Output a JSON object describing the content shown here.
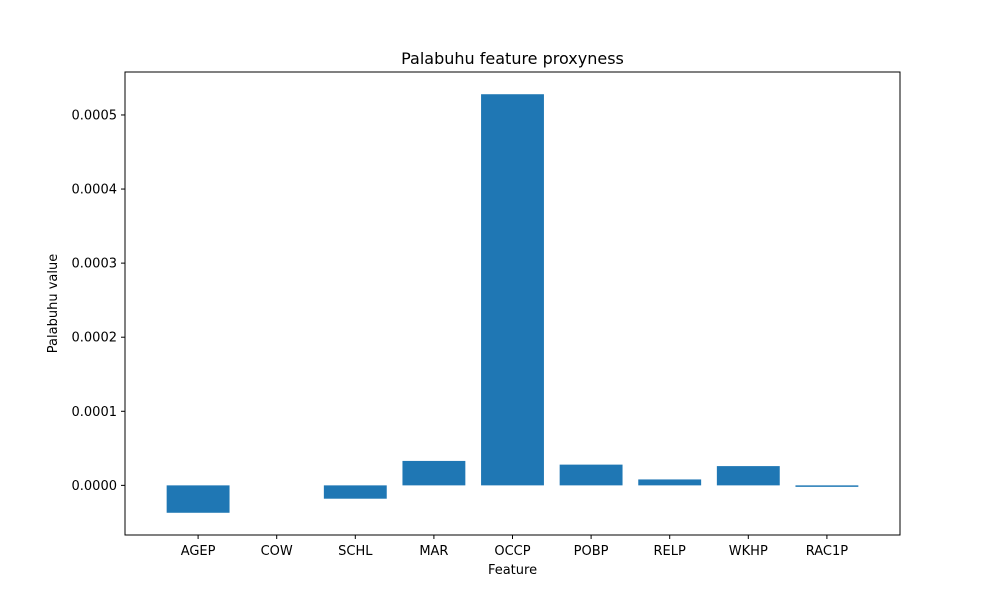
{
  "chart_data": {
    "type": "bar",
    "title": "Palabuhu feature proxyness",
    "xlabel": "Feature",
    "ylabel": "Palabuhu value",
    "categories": [
      "AGEP",
      "COW",
      "SCHL",
      "MAR",
      "OCCP",
      "POBP",
      "RELP",
      "WKHP",
      "RAC1P"
    ],
    "values": [
      -3.7e-05,
      0.0,
      -1.8e-05,
      3.3e-05,
      0.000528,
      2.8e-05,
      8e-06,
      2.6e-05,
      -2e-06
    ],
    "ylim": [
      -6.7e-05,
      0.000558
    ],
    "yticks": [
      0.0,
      0.0001,
      0.0002,
      0.0003,
      0.0004,
      0.0005
    ],
    "ytick_labels": [
      "0.0000",
      "0.0001",
      "0.0002",
      "0.0003",
      "0.0004",
      "0.0005"
    ],
    "grid": false,
    "bar_color": "#1f77b4"
  }
}
